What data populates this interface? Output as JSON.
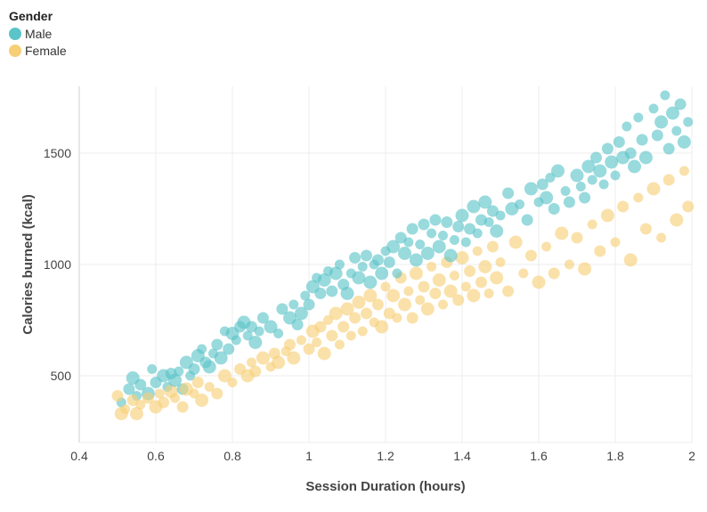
{
  "chart_data": {
    "type": "scatter",
    "xlabel": "Session Duration (hours)",
    "ylabel": "Calories burned (kcal)",
    "xlim": [
      0.4,
      2.0
    ],
    "ylim": [
      200,
      1800
    ],
    "xticks": [
      "0.4",
      "0.6",
      "0.8",
      "1",
      "1.2",
      "1.4",
      "1.6",
      "1.8",
      "2"
    ],
    "yticks": [
      "500",
      "1000",
      "1500"
    ],
    "grid": true,
    "legend": {
      "title": "Gender",
      "placement": "top-left"
    },
    "series": [
      {
        "name": "Male",
        "color": "#5BC4C8",
        "points": [
          [
            0.51,
            380
          ],
          [
            0.53,
            440
          ],
          [
            0.54,
            490
          ],
          [
            0.55,
            410
          ],
          [
            0.56,
            460
          ],
          [
            0.58,
            420
          ],
          [
            0.59,
            530
          ],
          [
            0.6,
            470
          ],
          [
            0.62,
            500
          ],
          [
            0.63,
            450
          ],
          [
            0.64,
            510
          ],
          [
            0.65,
            480
          ],
          [
            0.66,
            520
          ],
          [
            0.67,
            440
          ],
          [
            0.68,
            560
          ],
          [
            0.69,
            500
          ],
          [
            0.7,
            530
          ],
          [
            0.71,
            590
          ],
          [
            0.72,
            620
          ],
          [
            0.73,
            560
          ],
          [
            0.74,
            540
          ],
          [
            0.75,
            600
          ],
          [
            0.76,
            640
          ],
          [
            0.77,
            580
          ],
          [
            0.78,
            700
          ],
          [
            0.79,
            620
          ],
          [
            0.8,
            690
          ],
          [
            0.81,
            660
          ],
          [
            0.82,
            720
          ],
          [
            0.83,
            740
          ],
          [
            0.84,
            680
          ],
          [
            0.85,
            720
          ],
          [
            0.86,
            650
          ],
          [
            0.87,
            700
          ],
          [
            0.88,
            760
          ],
          [
            0.9,
            720
          ],
          [
            0.92,
            690
          ],
          [
            0.93,
            800
          ],
          [
            0.95,
            760
          ],
          [
            0.96,
            820
          ],
          [
            0.97,
            730
          ],
          [
            0.98,
            780
          ],
          [
            0.99,
            860
          ],
          [
            1.0,
            820
          ],
          [
            1.01,
            900
          ],
          [
            1.02,
            940
          ],
          [
            1.03,
            870
          ],
          [
            1.04,
            930
          ],
          [
            1.05,
            970
          ],
          [
            1.06,
            880
          ],
          [
            1.07,
            960
          ],
          [
            1.08,
            1000
          ],
          [
            1.09,
            910
          ],
          [
            1.1,
            870
          ],
          [
            1.11,
            960
          ],
          [
            1.12,
            1030
          ],
          [
            1.13,
            940
          ],
          [
            1.14,
            990
          ],
          [
            1.15,
            1040
          ],
          [
            1.16,
            920
          ],
          [
            1.17,
            1000
          ],
          [
            1.18,
            1020
          ],
          [
            1.19,
            960
          ],
          [
            1.2,
            1060
          ],
          [
            1.21,
            1010
          ],
          [
            1.22,
            1080
          ],
          [
            1.23,
            960
          ],
          [
            1.24,
            1120
          ],
          [
            1.25,
            1050
          ],
          [
            1.26,
            1100
          ],
          [
            1.27,
            1160
          ],
          [
            1.28,
            1020
          ],
          [
            1.29,
            1090
          ],
          [
            1.3,
            1180
          ],
          [
            1.31,
            1050
          ],
          [
            1.32,
            1140
          ],
          [
            1.33,
            1200
          ],
          [
            1.34,
            1080
          ],
          [
            1.35,
            1130
          ],
          [
            1.36,
            1190
          ],
          [
            1.37,
            1040
          ],
          [
            1.38,
            1110
          ],
          [
            1.39,
            1170
          ],
          [
            1.4,
            1220
          ],
          [
            1.41,
            1100
          ],
          [
            1.42,
            1160
          ],
          [
            1.43,
            1260
          ],
          [
            1.44,
            1140
          ],
          [
            1.45,
            1200
          ],
          [
            1.46,
            1280
          ],
          [
            1.47,
            1190
          ],
          [
            1.48,
            1240
          ],
          [
            1.49,
            1150
          ],
          [
            1.5,
            1220
          ],
          [
            1.52,
            1320
          ],
          [
            1.53,
            1250
          ],
          [
            1.55,
            1270
          ],
          [
            1.57,
            1200
          ],
          [
            1.58,
            1340
          ],
          [
            1.6,
            1280
          ],
          [
            1.61,
            1360
          ],
          [
            1.62,
            1300
          ],
          [
            1.63,
            1390
          ],
          [
            1.64,
            1250
          ],
          [
            1.65,
            1420
          ],
          [
            1.67,
            1330
          ],
          [
            1.68,
            1280
          ],
          [
            1.7,
            1400
          ],
          [
            1.71,
            1350
          ],
          [
            1.72,
            1300
          ],
          [
            1.73,
            1440
          ],
          [
            1.74,
            1380
          ],
          [
            1.75,
            1480
          ],
          [
            1.76,
            1420
          ],
          [
            1.77,
            1360
          ],
          [
            1.78,
            1520
          ],
          [
            1.79,
            1460
          ],
          [
            1.8,
            1400
          ],
          [
            1.81,
            1550
          ],
          [
            1.82,
            1480
          ],
          [
            1.83,
            1620
          ],
          [
            1.84,
            1500
          ],
          [
            1.85,
            1440
          ],
          [
            1.86,
            1660
          ],
          [
            1.87,
            1560
          ],
          [
            1.88,
            1480
          ],
          [
            1.9,
            1700
          ],
          [
            1.91,
            1580
          ],
          [
            1.92,
            1640
          ],
          [
            1.93,
            1760
          ],
          [
            1.94,
            1520
          ],
          [
            1.95,
            1680
          ],
          [
            1.96,
            1600
          ],
          [
            1.97,
            1720
          ],
          [
            1.98,
            1550
          ],
          [
            1.99,
            1640
          ]
        ]
      },
      {
        "name": "Female",
        "color": "#F7CF76",
        "points": [
          [
            0.5,
            410
          ],
          [
            0.51,
            330
          ],
          [
            0.52,
            350
          ],
          [
            0.54,
            390
          ],
          [
            0.55,
            330
          ],
          [
            0.56,
            370
          ],
          [
            0.58,
            400
          ],
          [
            0.6,
            360
          ],
          [
            0.61,
            420
          ],
          [
            0.62,
            380
          ],
          [
            0.64,
            430
          ],
          [
            0.65,
            400
          ],
          [
            0.67,
            360
          ],
          [
            0.68,
            440
          ],
          [
            0.7,
            420
          ],
          [
            0.71,
            470
          ],
          [
            0.72,
            390
          ],
          [
            0.74,
            450
          ],
          [
            0.76,
            420
          ],
          [
            0.78,
            500
          ],
          [
            0.8,
            470
          ],
          [
            0.82,
            530
          ],
          [
            0.84,
            500
          ],
          [
            0.85,
            560
          ],
          [
            0.86,
            520
          ],
          [
            0.88,
            580
          ],
          [
            0.9,
            540
          ],
          [
            0.91,
            600
          ],
          [
            0.92,
            560
          ],
          [
            0.94,
            610
          ],
          [
            0.95,
            640
          ],
          [
            0.96,
            580
          ],
          [
            0.98,
            660
          ],
          [
            1.0,
            620
          ],
          [
            1.01,
            700
          ],
          [
            1.02,
            650
          ],
          [
            1.03,
            720
          ],
          [
            1.04,
            600
          ],
          [
            1.05,
            750
          ],
          [
            1.06,
            680
          ],
          [
            1.07,
            780
          ],
          [
            1.08,
            640
          ],
          [
            1.09,
            720
          ],
          [
            1.1,
            800
          ],
          [
            1.11,
            680
          ],
          [
            1.12,
            760
          ],
          [
            1.13,
            830
          ],
          [
            1.14,
            700
          ],
          [
            1.15,
            780
          ],
          [
            1.16,
            860
          ],
          [
            1.17,
            740
          ],
          [
            1.18,
            820
          ],
          [
            1.19,
            720
          ],
          [
            1.2,
            900
          ],
          [
            1.21,
            780
          ],
          [
            1.22,
            860
          ],
          [
            1.23,
            760
          ],
          [
            1.24,
            940
          ],
          [
            1.25,
            820
          ],
          [
            1.26,
            880
          ],
          [
            1.27,
            760
          ],
          [
            1.28,
            960
          ],
          [
            1.29,
            840
          ],
          [
            1.3,
            900
          ],
          [
            1.31,
            800
          ],
          [
            1.32,
            990
          ],
          [
            1.33,
            870
          ],
          [
            1.34,
            930
          ],
          [
            1.35,
            820
          ],
          [
            1.36,
            1010
          ],
          [
            1.37,
            880
          ],
          [
            1.38,
            950
          ],
          [
            1.39,
            840
          ],
          [
            1.4,
            1030
          ],
          [
            1.41,
            900
          ],
          [
            1.42,
            970
          ],
          [
            1.43,
            860
          ],
          [
            1.44,
            1060
          ],
          [
            1.45,
            920
          ],
          [
            1.46,
            990
          ],
          [
            1.47,
            870
          ],
          [
            1.48,
            1080
          ],
          [
            1.49,
            940
          ],
          [
            1.5,
            1010
          ],
          [
            1.52,
            880
          ],
          [
            1.54,
            1100
          ],
          [
            1.56,
            960
          ],
          [
            1.58,
            1040
          ],
          [
            1.6,
            920
          ],
          [
            1.62,
            1080
          ],
          [
            1.64,
            960
          ],
          [
            1.66,
            1140
          ],
          [
            1.68,
            1000
          ],
          [
            1.7,
            1120
          ],
          [
            1.72,
            980
          ],
          [
            1.74,
            1180
          ],
          [
            1.76,
            1060
          ],
          [
            1.78,
            1220
          ],
          [
            1.8,
            1100
          ],
          [
            1.82,
            1260
          ],
          [
            1.84,
            1020
          ],
          [
            1.86,
            1300
          ],
          [
            1.88,
            1160
          ],
          [
            1.9,
            1340
          ],
          [
            1.92,
            1120
          ],
          [
            1.94,
            1380
          ],
          [
            1.96,
            1200
          ],
          [
            1.98,
            1420
          ],
          [
            1.99,
            1260
          ]
        ]
      }
    ]
  }
}
